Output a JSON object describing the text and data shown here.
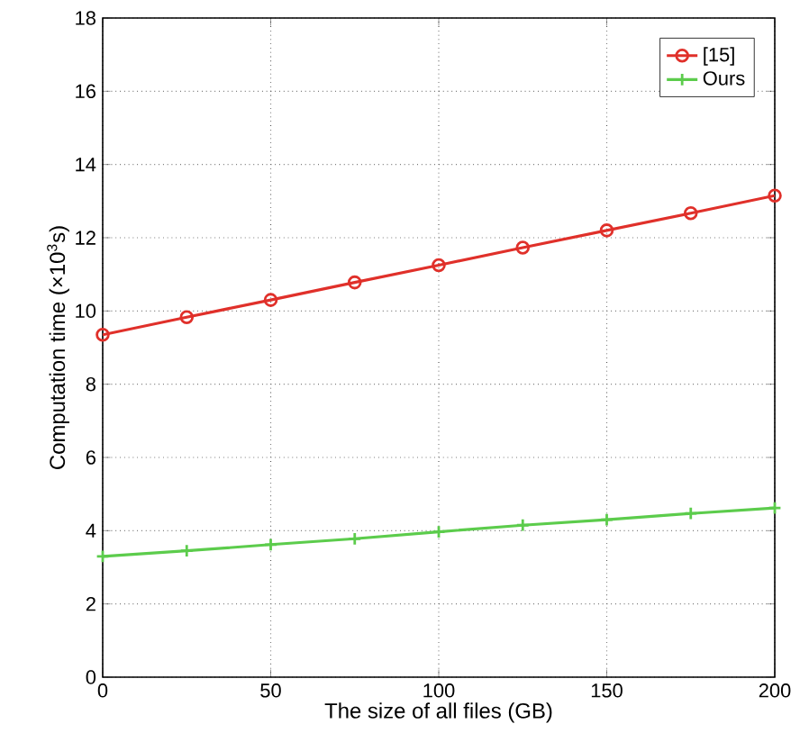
{
  "chart_data": {
    "type": "line",
    "xlabel": "The size of all files (GB)",
    "ylabel": "Computation time (×10$^{3}$s)",
    "x": [
      0,
      25,
      50,
      75,
      100,
      125,
      150,
      175,
      200
    ],
    "series": [
      {
        "name": "[15]",
        "color": "#e0302a",
        "marker": "circle",
        "values": [
          9.35,
          9.83,
          10.3,
          10.78,
          11.25,
          11.73,
          12.2,
          12.67,
          13.15
        ]
      },
      {
        "name": "Ours",
        "color": "#5ccc4c",
        "marker": "cross",
        "values": [
          3.3,
          3.45,
          3.62,
          3.78,
          3.97,
          4.15,
          4.3,
          4.47,
          4.62
        ]
      }
    ],
    "xlim": [
      0,
      200
    ],
    "ylim": [
      0,
      18
    ],
    "xticks": [
      0,
      50,
      100,
      150,
      200
    ],
    "yticks": [
      0,
      2,
      4,
      6,
      8,
      10,
      12,
      14,
      16,
      18
    ],
    "grid": true,
    "legend": "top right",
    "line_style": "solid"
  }
}
